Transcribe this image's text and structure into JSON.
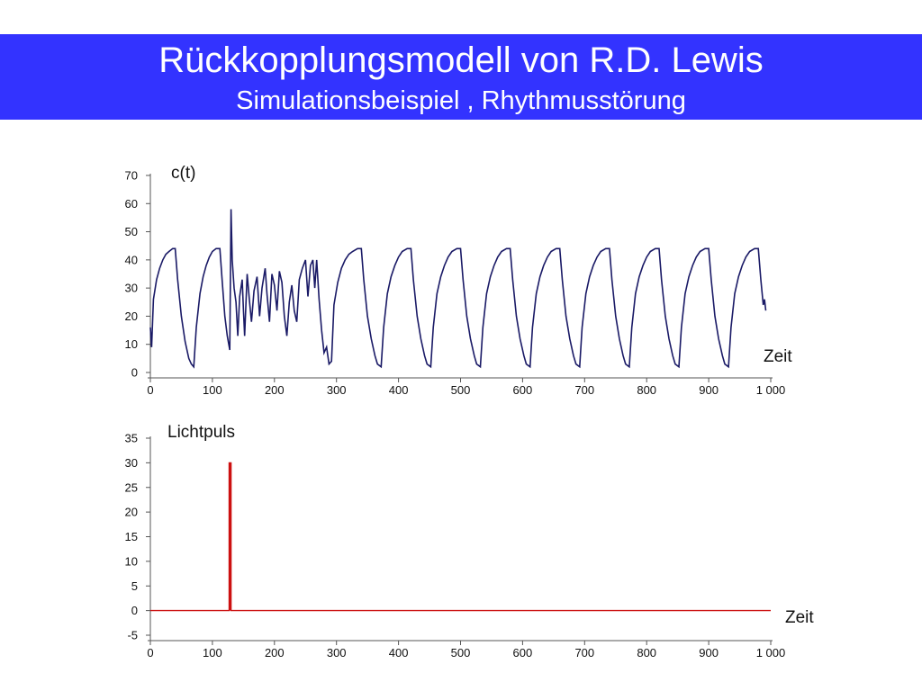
{
  "slide": {
    "title": "Rückkopplungsmodell von R.D. Lewis",
    "subtitle": "Simulationsbeispiel , Rhythmusstörung",
    "banner_color": "#3333ff"
  },
  "chart_data": [
    {
      "type": "line",
      "title": "",
      "ylabel": "c(t)",
      "xlabel": "Zeit",
      "xlim": [
        0,
        1000
      ],
      "ylim": [
        0,
        70
      ],
      "xticks": [
        0,
        100,
        200,
        300,
        400,
        500,
        600,
        700,
        800,
        900,
        1000
      ],
      "xtick_labels": [
        "0",
        "100",
        "200",
        "300",
        "400",
        "500",
        "600",
        "700",
        "800",
        "900",
        "1 000"
      ],
      "yticks": [
        0,
        10,
        20,
        30,
        40,
        50,
        60,
        70
      ],
      "ytick_labels": [
        "0",
        "10",
        "20",
        "30",
        "40",
        "50",
        "60",
        "70"
      ],
      "grid": false,
      "color": "#1a1a66",
      "series": [
        {
          "points": [
            [
              0,
              16
            ],
            [
              2,
              9
            ],
            [
              5,
              26
            ],
            [
              10,
              33
            ],
            [
              15,
              37
            ],
            [
              20,
              40
            ],
            [
              25,
              42
            ],
            [
              30,
              43
            ],
            [
              36,
              44
            ],
            [
              40,
              44
            ],
            [
              44,
              33
            ],
            [
              50,
              20
            ],
            [
              56,
              11
            ],
            [
              62,
              5
            ],
            [
              66,
              3
            ],
            [
              70,
              2
            ],
            [
              74,
              16
            ],
            [
              80,
              28
            ],
            [
              85,
              34
            ],
            [
              90,
              38
            ],
            [
              95,
              41
            ],
            [
              100,
              43
            ],
            [
              106,
              44
            ],
            [
              112,
              44
            ],
            [
              116,
              32
            ],
            [
              120,
              20
            ],
            [
              124,
              13
            ],
            [
              128,
              8
            ],
            [
              130,
              58
            ],
            [
              132,
              40
            ],
            [
              135,
              30
            ],
            [
              138,
              25
            ],
            [
              141,
              13
            ],
            [
              144,
              27
            ],
            [
              148,
              33
            ],
            [
              150,
              22
            ],
            [
              152,
              13
            ],
            [
              156,
              35
            ],
            [
              160,
              25
            ],
            [
              163,
              18
            ],
            [
              167,
              29
            ],
            [
              172,
              34
            ],
            [
              176,
              20
            ],
            [
              180,
              30
            ],
            [
              185,
              37
            ],
            [
              188,
              28
            ],
            [
              192,
              18
            ],
            [
              196,
              35
            ],
            [
              200,
              31
            ],
            [
              204,
              22
            ],
            [
              208,
              36
            ],
            [
              212,
              32
            ],
            [
              216,
              20
            ],
            [
              220,
              13
            ],
            [
              224,
              25
            ],
            [
              228,
              31
            ],
            [
              232,
              22
            ],
            [
              236,
              18
            ],
            [
              240,
              33
            ],
            [
              245,
              37
            ],
            [
              250,
              40
            ],
            [
              254,
              27
            ],
            [
              258,
              38
            ],
            [
              262,
              40
            ],
            [
              265,
              30
            ],
            [
              268,
              40
            ],
            [
              272,
              26
            ],
            [
              276,
              15
            ],
            [
              280,
              7
            ],
            [
              284,
              9
            ],
            [
              288,
              3
            ],
            [
              292,
              4
            ],
            [
              296,
              24
            ],
            [
              302,
              32
            ],
            [
              308,
              37
            ],
            [
              314,
              40
            ],
            [
              320,
              42
            ],
            [
              326,
              43
            ],
            [
              334,
              44
            ],
            [
              340,
              44
            ],
            [
              344,
              33
            ],
            [
              350,
              20
            ],
            [
              356,
              12
            ],
            [
              362,
              6
            ],
            [
              366,
              3
            ],
            [
              372,
              2
            ],
            [
              376,
              16
            ],
            [
              382,
              28
            ],
            [
              388,
              34
            ],
            [
              394,
              38
            ],
            [
              400,
              41
            ],
            [
              406,
              43
            ],
            [
              414,
              44
            ],
            [
              420,
              44
            ],
            [
              424,
              33
            ],
            [
              430,
              20
            ],
            [
              436,
              12
            ],
            [
              442,
              6
            ],
            [
              446,
              3
            ],
            [
              452,
              2
            ],
            [
              456,
              16
            ],
            [
              462,
              28
            ],
            [
              468,
              34
            ],
            [
              474,
              38
            ],
            [
              480,
              41
            ],
            [
              486,
              43
            ],
            [
              494,
              44
            ],
            [
              500,
              44
            ],
            [
              504,
              33
            ],
            [
              510,
              20
            ],
            [
              516,
              12
            ],
            [
              522,
              6
            ],
            [
              526,
              3
            ],
            [
              532,
              2
            ],
            [
              536,
              16
            ],
            [
              542,
              28
            ],
            [
              548,
              34
            ],
            [
              554,
              38
            ],
            [
              560,
              41
            ],
            [
              566,
              43
            ],
            [
              574,
              44
            ],
            [
              580,
              44
            ],
            [
              584,
              33
            ],
            [
              590,
              20
            ],
            [
              596,
              12
            ],
            [
              602,
              6
            ],
            [
              606,
              3
            ],
            [
              612,
              2
            ],
            [
              616,
              16
            ],
            [
              622,
              28
            ],
            [
              628,
              34
            ],
            [
              634,
              38
            ],
            [
              640,
              41
            ],
            [
              646,
              43
            ],
            [
              654,
              44
            ],
            [
              660,
              44
            ],
            [
              664,
              33
            ],
            [
              670,
              20
            ],
            [
              676,
              12
            ],
            [
              682,
              6
            ],
            [
              686,
              3
            ],
            [
              692,
              2
            ],
            [
              696,
              16
            ],
            [
              702,
              28
            ],
            [
              708,
              34
            ],
            [
              714,
              38
            ],
            [
              720,
              41
            ],
            [
              726,
              43
            ],
            [
              734,
              44
            ],
            [
              740,
              44
            ],
            [
              744,
              33
            ],
            [
              750,
              20
            ],
            [
              756,
              12
            ],
            [
              762,
              6
            ],
            [
              766,
              3
            ],
            [
              772,
              2
            ],
            [
              776,
              16
            ],
            [
              782,
              28
            ],
            [
              788,
              34
            ],
            [
              794,
              38
            ],
            [
              800,
              41
            ],
            [
              806,
              43
            ],
            [
              814,
              44
            ],
            [
              820,
              44
            ],
            [
              824,
              33
            ],
            [
              830,
              20
            ],
            [
              836,
              12
            ],
            [
              842,
              6
            ],
            [
              846,
              3
            ],
            [
              852,
              2
            ],
            [
              856,
              16
            ],
            [
              862,
              28
            ],
            [
              868,
              34
            ],
            [
              874,
              38
            ],
            [
              880,
              41
            ],
            [
              886,
              43
            ],
            [
              894,
              44
            ],
            [
              900,
              44
            ],
            [
              904,
              33
            ],
            [
              910,
              20
            ],
            [
              916,
              12
            ],
            [
              922,
              6
            ],
            [
              926,
              3
            ],
            [
              932,
              2
            ],
            [
              936,
              16
            ],
            [
              942,
              28
            ],
            [
              948,
              34
            ],
            [
              954,
              38
            ],
            [
              960,
              41
            ],
            [
              966,
              43
            ],
            [
              974,
              44
            ],
            [
              980,
              44
            ],
            [
              984,
              33
            ],
            [
              988,
              24
            ],
            [
              990,
              26
            ],
            [
              992,
              22
            ]
          ]
        }
      ]
    },
    {
      "type": "line",
      "title": "",
      "ylabel": "Lichtpuls",
      "xlabel": "Zeit",
      "xlim": [
        0,
        1000
      ],
      "ylim": [
        -5,
        35
      ],
      "xticks": [
        0,
        100,
        200,
        300,
        400,
        500,
        600,
        700,
        800,
        900,
        1000
      ],
      "xtick_labels": [
        "0",
        "100",
        "200",
        "300",
        "400",
        "500",
        "600",
        "700",
        "800",
        "900",
        "1 000"
      ],
      "yticks": [
        -5,
        0,
        5,
        10,
        15,
        20,
        25,
        30,
        35
      ],
      "ytick_labels": [
        "-5",
        "0",
        "5",
        "10",
        "15",
        "20",
        "25",
        "30",
        "35"
      ],
      "grid": false,
      "color": "#cc1111",
      "series": [
        {
          "points": [
            [
              0,
              0
            ],
            [
              127,
              0
            ],
            [
              127,
              30
            ],
            [
              130,
              30
            ],
            [
              130,
              0
            ],
            [
              1000,
              0
            ]
          ]
        }
      ]
    }
  ]
}
